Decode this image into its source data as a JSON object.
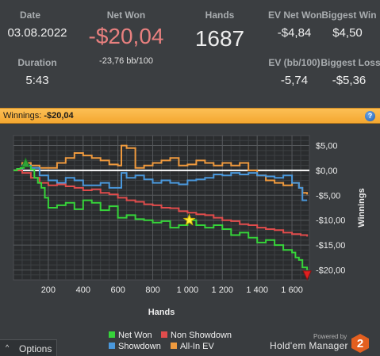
{
  "stats": {
    "date": {
      "label": "Date",
      "value": "03.08.2022"
    },
    "net_won": {
      "label": "Net Won",
      "value": "-$20,04",
      "sub": "-23,76 bb/100"
    },
    "hands": {
      "label": "Hands",
      "value": "1687"
    },
    "ev_net_won": {
      "label": "EV Net Won",
      "value": "-$4,84"
    },
    "biggest_win": {
      "label": "Biggest Win",
      "value": "$4,50"
    },
    "duration": {
      "label": "Duration",
      "value": "5:43"
    },
    "ev_bb100": {
      "label": "EV (bb/100)",
      "value": "-5,74"
    },
    "biggest_loss": {
      "label": "Biggest Loss",
      "value": "-$5,36"
    }
  },
  "colors": {
    "net_won_value": "#e8807f",
    "header_bar": "#f7b13e",
    "net_won_series": "#36d43a",
    "non_showdown_series": "#e04c4c",
    "showdown_series": "#4a98dc",
    "all_in_ev_series": "#ef9a3e"
  },
  "header": {
    "title_prefix": "Winnings:",
    "title_value": "-$20,04",
    "help_icon": "?"
  },
  "options": {
    "label": "Options",
    "arrow": "^"
  },
  "branding": {
    "powered_by": "Powered by",
    "name": "Hold'em Manager",
    "logo_number": "2"
  },
  "chart_data": {
    "type": "line",
    "title": "",
    "xlabel": "Hands",
    "ylabel": "Winnings",
    "xlim": [
      0,
      1700
    ],
    "ylim": [
      -22,
      7
    ],
    "x_ticks": [
      200,
      400,
      600,
      800,
      1000,
      1200,
      1400,
      1600
    ],
    "x_tick_labels": [
      "200",
      "400",
      "600",
      "800",
      "1 000",
      "1 200",
      "1 400",
      "1 600"
    ],
    "y_ticks": [
      5,
      0,
      -5,
      -10,
      -15,
      -20
    ],
    "y_tick_labels": [
      "$5,00",
      "$0,00",
      "-$5,00",
      "-$10,00",
      "-$15,00",
      "-$20,00"
    ],
    "grid": true,
    "legend_position": "bottom",
    "markers": [
      {
        "symbol": "green-triangle-up",
        "x": 70,
        "y": 1.5
      },
      {
        "symbol": "yellow-star",
        "x": 1010,
        "y": -10
      },
      {
        "symbol": "red-triangle-down",
        "x": 1687,
        "y": -21
      }
    ],
    "series": [
      {
        "name": "Net Won",
        "color": "#36d43a",
        "x": [
          0,
          20,
          40,
          60,
          80,
          100,
          120,
          140,
          160,
          180,
          200,
          250,
          300,
          350,
          400,
          450,
          500,
          550,
          600,
          650,
          700,
          750,
          800,
          850,
          900,
          950,
          1000,
          1050,
          1100,
          1150,
          1200,
          1250,
          1300,
          1350,
          1400,
          1450,
          1500,
          1550,
          1600,
          1620,
          1640,
          1660,
          1687
        ],
        "y": [
          0,
          0.3,
          0.5,
          1.0,
          0.8,
          0.2,
          -1.5,
          -2.5,
          -3.5,
          -5.5,
          -7.5,
          -7.0,
          -6.5,
          -7.8,
          -6.0,
          -6.5,
          -8.0,
          -7.2,
          -9.5,
          -9.0,
          -9.8,
          -10.0,
          -10.5,
          -10.2,
          -11.5,
          -11.0,
          -10.0,
          -11.0,
          -11.5,
          -11.0,
          -11.8,
          -13.0,
          -12.5,
          -13.5,
          -14.5,
          -14.0,
          -15.0,
          -16.0,
          -16.5,
          -17.5,
          -18.0,
          -19.5,
          -20.04
        ]
      },
      {
        "name": "Non Showdown",
        "color": "#e04c4c",
        "x": [
          0,
          50,
          100,
          150,
          200,
          250,
          300,
          350,
          400,
          450,
          500,
          550,
          600,
          650,
          700,
          750,
          800,
          850,
          900,
          950,
          1000,
          1050,
          1100,
          1150,
          1200,
          1250,
          1300,
          1350,
          1400,
          1450,
          1500,
          1550,
          1600,
          1650,
          1687
        ],
        "y": [
          0,
          -0.5,
          -1.5,
          -2.5,
          -3.0,
          -2.8,
          -3.2,
          -3.5,
          -4.0,
          -3.8,
          -4.5,
          -4.8,
          -5.5,
          -6.0,
          -6.3,
          -6.8,
          -7.0,
          -7.5,
          -7.6,
          -8.2,
          -8.5,
          -8.8,
          -9.0,
          -9.5,
          -10.0,
          -10.2,
          -10.8,
          -11.0,
          -11.5,
          -11.8,
          -12.0,
          -12.5,
          -12.8,
          -13.0,
          -13.3
        ]
      },
      {
        "name": "Showdown",
        "color": "#4a98dc",
        "x": [
          0,
          50,
          100,
          150,
          200,
          250,
          300,
          350,
          400,
          450,
          500,
          550,
          600,
          620,
          650,
          700,
          750,
          800,
          850,
          900,
          950,
          1000,
          1050,
          1100,
          1150,
          1200,
          1250,
          1300,
          1350,
          1400,
          1450,
          1500,
          1550,
          1600,
          1640,
          1660,
          1687
        ],
        "y": [
          0,
          1.0,
          0.5,
          -1.0,
          -2.0,
          -2.5,
          -1.5,
          -2.0,
          -3.0,
          -3.0,
          -2.5,
          -3.5,
          -3.5,
          -0.5,
          -1.5,
          -1.0,
          -1.8,
          -2.5,
          -2.0,
          -2.5,
          -2.8,
          -2.0,
          -1.8,
          -1.5,
          -0.8,
          -1.0,
          -0.5,
          -0.8,
          -0.5,
          -1.0,
          -1.2,
          -1.5,
          -1.0,
          -2.5,
          -3.5,
          -6.0,
          -6.0
        ]
      },
      {
        "name": "All-In EV",
        "color": "#ef9a3e",
        "x": [
          0,
          50,
          100,
          150,
          200,
          250,
          300,
          350,
          400,
          450,
          500,
          550,
          600,
          620,
          650,
          700,
          750,
          800,
          850,
          900,
          950,
          1000,
          1050,
          1100,
          1150,
          1200,
          1250,
          1300,
          1350,
          1400,
          1450,
          1500,
          1550,
          1600,
          1640,
          1660,
          1687
        ],
        "y": [
          0,
          1.5,
          1.0,
          0.5,
          0.5,
          1.5,
          2.5,
          3.5,
          3.0,
          2.5,
          2.0,
          1.2,
          1.0,
          5.0,
          4.5,
          0.5,
          1.0,
          1.5,
          2.0,
          2.5,
          1.0,
          1.2,
          2.0,
          1.5,
          1.0,
          1.5,
          1.0,
          1.5,
          0.0,
          -1.0,
          -2.0,
          -2.5,
          -3.0,
          -2.5,
          -3.5,
          -4.5,
          -4.84
        ]
      }
    ]
  }
}
